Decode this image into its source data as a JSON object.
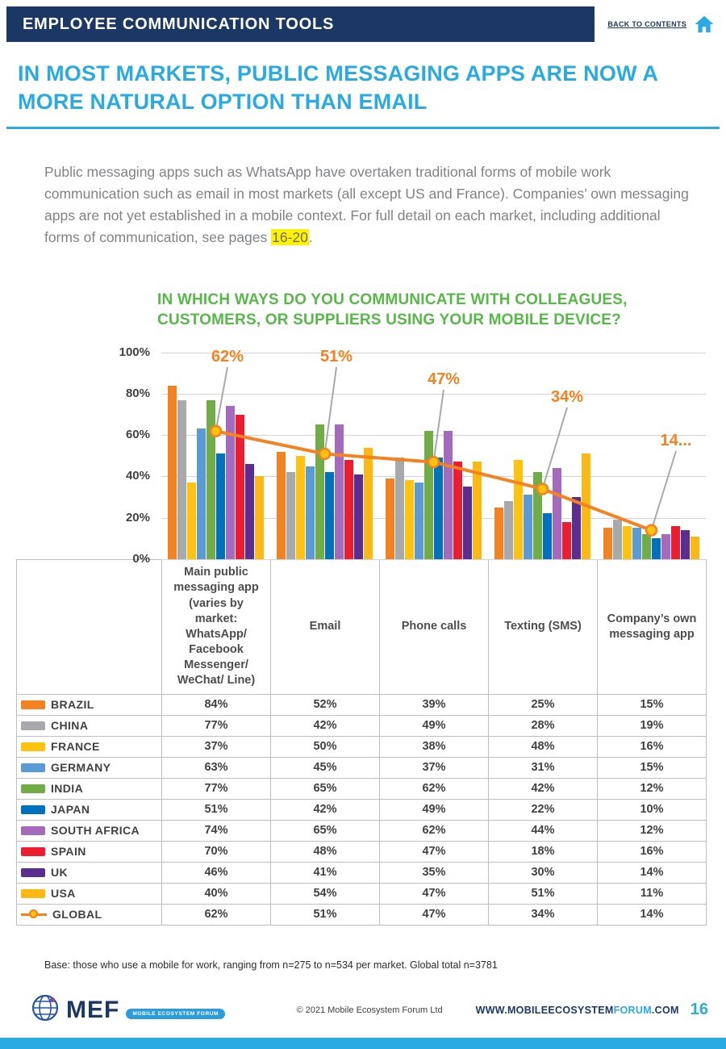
{
  "header": {
    "title": "EMPLOYEE COMMUNICATION TOOLS",
    "back_link": "BACK TO CONTENTS"
  },
  "headline": "IN MOST MARKETS, PUBLIC MESSAGING APPS ARE NOW A MORE NATURAL OPTION THAN EMAIL",
  "intro": {
    "text_before": "Public messaging apps such as WhatsApp have overtaken traditional forms of mobile work communication such as email in most markets (all except US and France). Companies’ own messaging apps are not yet established in a mobile context. For full detail on each market, including additional forms of communication, see pages ",
    "highlight": "16-20",
    "text_after": "."
  },
  "chart_data": {
    "type": "bar",
    "title": "IN WHICH WAYS DO YOU COMMUNICATE WITH COLLEAGUES, CUSTOMERS, OR SUPPLIERS USING YOUR MOBILE DEVICE?",
    "categories": [
      "Main public messaging app (varies by market: WhatsApp/ Facebook Messenger/ WeChat/ Line)",
      "Email",
      "Phone calls",
      "Texting (SMS)",
      "Company’s own messaging app"
    ],
    "ylim": [
      0,
      100
    ],
    "yticks": [
      100,
      80,
      60,
      40,
      20,
      0
    ],
    "grid": true,
    "legend_position": "table-left",
    "series": [
      {
        "name": "BRAZIL",
        "color": "#F58220",
        "values": [
          84,
          52,
          39,
          25,
          15
        ]
      },
      {
        "name": "CHINA",
        "color": "#A7A9AC",
        "values": [
          77,
          42,
          49,
          28,
          19
        ]
      },
      {
        "name": "FRANCE",
        "color": "#FFC20E",
        "values": [
          37,
          50,
          38,
          48,
          16
        ]
      },
      {
        "name": "GERMANY",
        "color": "#5B9BD5",
        "values": [
          63,
          45,
          37,
          31,
          15
        ]
      },
      {
        "name": "INDIA",
        "color": "#70AD47",
        "values": [
          77,
          65,
          62,
          42,
          12
        ]
      },
      {
        "name": "JAPAN",
        "color": "#0071BC",
        "values": [
          51,
          42,
          49,
          22,
          10
        ]
      },
      {
        "name": "SOUTH AFRICA",
        "color": "#A569BD",
        "values": [
          74,
          65,
          62,
          44,
          12
        ]
      },
      {
        "name": "SPAIN",
        "color": "#ED1C2E",
        "values": [
          70,
          48,
          47,
          18,
          16
        ]
      },
      {
        "name": "UK",
        "color": "#5C2D91",
        "values": [
          46,
          41,
          35,
          30,
          14
        ]
      },
      {
        "name": "USA",
        "color": "#FDB913",
        "values": [
          40,
          54,
          47,
          51,
          11
        ]
      }
    ],
    "global_line": {
      "name": "GLOBAL",
      "color": "#F58220",
      "marker_fill": "#FFC20E",
      "values": [
        62,
        51,
        47,
        34,
        14
      ]
    },
    "annotations": [
      {
        "label": "62%"
      },
      {
        "label": "51%"
      },
      {
        "label": "47%"
      },
      {
        "label": "34%"
      },
      {
        "label": "14..."
      }
    ]
  },
  "footnote": "Base: those who use a mobile for work, ranging from n=275 to n=534 per market. Global total n=3781",
  "footer": {
    "logo_text": "MEF",
    "logo_sub": "MOBILE ECOSYSTEM FORUM",
    "copyright": "© 2021 Mobile Ecosystem Forum Ltd",
    "url_pre": "WWW.MOBILEECOSYSTEM",
    "url_mid": "FORUM",
    "url_post": ".COM",
    "page_number": "16"
  }
}
